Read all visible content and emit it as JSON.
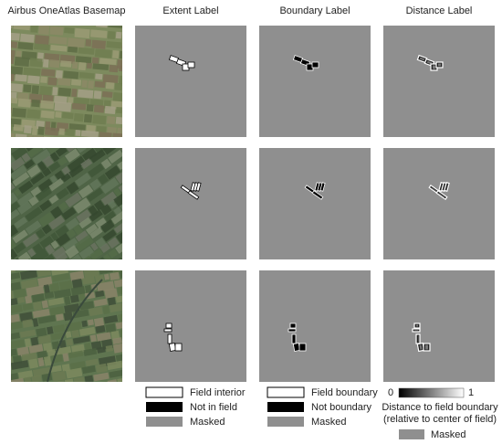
{
  "columns": [
    "Airbus OneAtlas Basemap",
    "Extent Label",
    "Boundary Label",
    "Distance Label"
  ],
  "extent_legend": [
    "Field interior",
    "Not in field",
    "Masked"
  ],
  "boundary_legend": [
    "Field boundary",
    "Not boundary",
    "Masked"
  ],
  "distance_legend": {
    "min": 0,
    "max": 1,
    "title": "Distance to field boundary",
    "subtitle": "(relative to center of field)",
    "masked": "Masked"
  }
}
